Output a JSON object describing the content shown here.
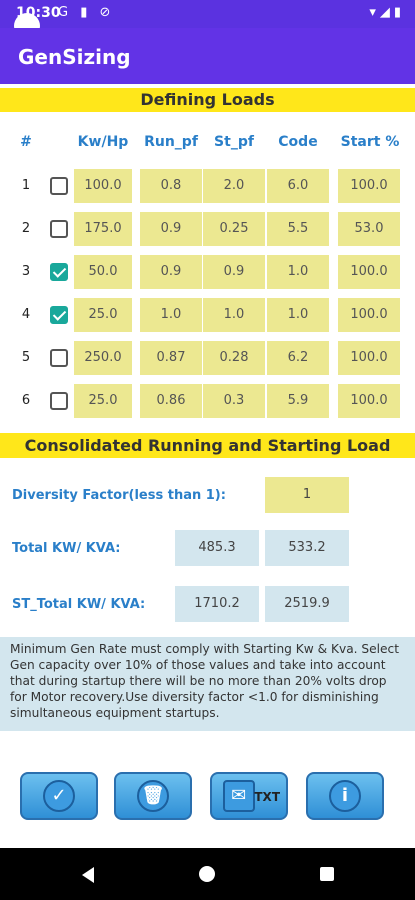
{
  "status_bar": {
    "time": "10:30",
    "icons": "G ▮ ⊘",
    "right_icons": "▾◢▮"
  },
  "app": {
    "title": "GenSizing"
  },
  "loads": {
    "section_title": "Defining Loads",
    "headers": [
      "#",
      "Kw/Hp",
      "Run_pf",
      "St_pf",
      "Code",
      "Start %"
    ],
    "rows": [
      {
        "num": "1",
        "checked": false,
        "kwhp": "100.0",
        "run_pf": "0.8",
        "st_pf": "2.0",
        "code": "6.0",
        "start": "100.0"
      },
      {
        "num": "2",
        "checked": false,
        "kwhp": "175.0",
        "run_pf": "0.9",
        "st_pf": "0.25",
        "code": "5.5",
        "start": "53.0"
      },
      {
        "num": "3",
        "checked": true,
        "kwhp": "50.0",
        "run_pf": "0.9",
        "st_pf": "0.9",
        "code": "1.0",
        "start": "100.0"
      },
      {
        "num": "4",
        "checked": true,
        "kwhp": "25.0",
        "run_pf": "1.0",
        "st_pf": "1.0",
        "code": "1.0",
        "start": "100.0"
      },
      {
        "num": "5",
        "checked": false,
        "kwhp": "250.0",
        "run_pf": "0.87",
        "st_pf": "0.28",
        "code": "6.2",
        "start": "100.0"
      },
      {
        "num": "6",
        "checked": false,
        "kwhp": "25.0",
        "run_pf": "0.86",
        "st_pf": "0.3",
        "code": "5.9",
        "start": "100.0"
      }
    ]
  },
  "consolidated": {
    "section_title": "Consolidated Running and Starting Load",
    "diversity_label": "Diversity Factor(less than 1):",
    "diversity_value": "1",
    "total_label": "Total KW/ KVA:",
    "total_kw": "485.3",
    "total_kva": "533.2",
    "st_total_label": "ST_Total KW/ KVA:",
    "st_total_kw": "1710.2",
    "st_total_kva": "2519.9"
  },
  "note": "Minimum Gen Rate must comply with Starting Kw & Kva. Select Gen capacity over 10% of those values and take into account that during startup there will be no more than 20% volts drop for Motor recovery.Use diversity factor <1.0 for disminishing simultaneous equipment startups.",
  "buttons": [
    {
      "name": "calculate",
      "icon": "checklist-icon"
    },
    {
      "name": "clear",
      "icon": "trash-icon"
    },
    {
      "name": "email-txt",
      "icon": "envelope-icon",
      "label": "TXT"
    },
    {
      "name": "info",
      "icon": "info-icon"
    }
  ]
}
